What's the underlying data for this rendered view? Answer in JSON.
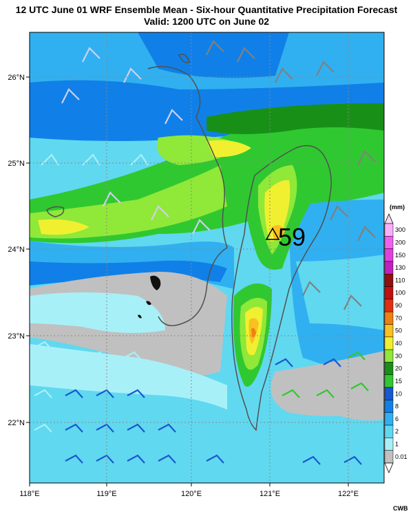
{
  "title": {
    "line1": "12 UTC June 01 WRF Ensemble Mean - Six-hour Quantitative Precipitation Forecast",
    "line2": "Valid: 1200 UTC on June 02"
  },
  "axes": {
    "lon_labels": [
      "118°E",
      "119°E",
      "120°E",
      "121°E",
      "122°E"
    ],
    "lat_labels": [
      "26°N",
      "25°N",
      "24°N",
      "23°N",
      "22°N"
    ]
  },
  "max_marker": {
    "value": "59"
  },
  "legend": {
    "unit": "(mm)",
    "bins": [
      {
        "label": "0.01",
        "color": "#c0c0c0"
      },
      {
        "label": "1",
        "color": "#a8f0f8"
      },
      {
        "label": "2",
        "color": "#60d8f0"
      },
      {
        "label": "6",
        "color": "#30b0f0"
      },
      {
        "label": "8",
        "color": "#1080e8"
      },
      {
        "label": "10",
        "color": "#1858d0"
      },
      {
        "label": "15",
        "color": "#30c830"
      },
      {
        "label": "20",
        "color": "#189018"
      },
      {
        "label": "30",
        "color": "#90e838"
      },
      {
        "label": "40",
        "color": "#f0f030"
      },
      {
        "label": "50",
        "color": "#f8c020"
      },
      {
        "label": "70",
        "color": "#f08010"
      },
      {
        "label": "90",
        "color": "#e03010"
      },
      {
        "label": "100",
        "color": "#c01010"
      },
      {
        "label": "110",
        "color": "#901010"
      },
      {
        "label": "130",
        "color": "#c020c0"
      },
      {
        "label": "150",
        "color": "#e040e0"
      },
      {
        "label": "200",
        "color": "#f060f0"
      },
      {
        "label": "300",
        "color": "#f8b0f8"
      }
    ]
  },
  "credit": "CWB"
}
